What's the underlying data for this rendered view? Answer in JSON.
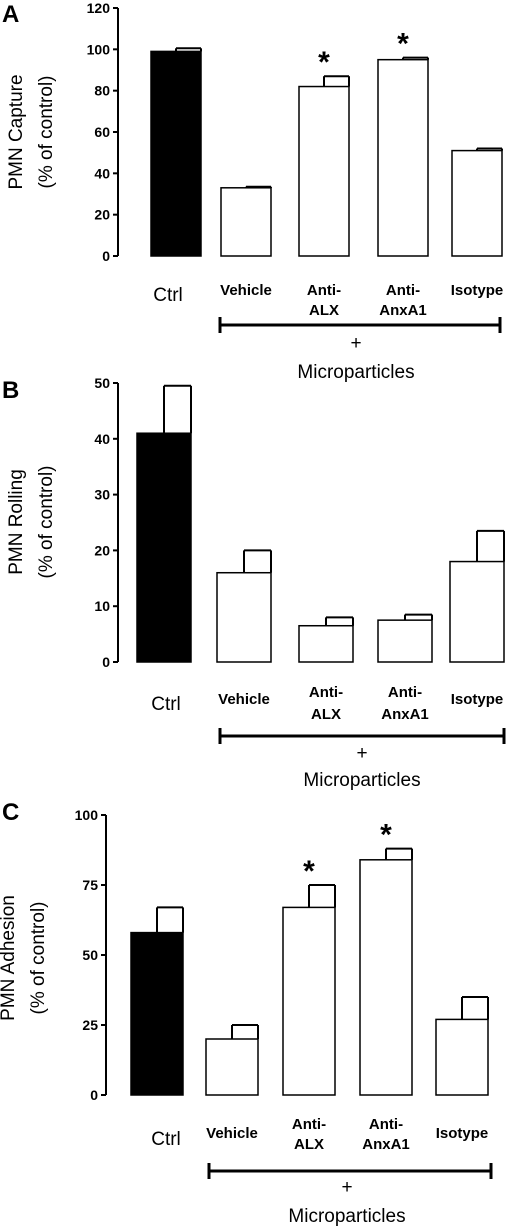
{
  "chart_data": [
    {
      "type": "bar",
      "panel": "A",
      "ylabel_line1": "PMN Capture",
      "ylabel_line2": "(% of control)",
      "ylim": [
        0,
        120
      ],
      "yticks": [
        0,
        20,
        40,
        60,
        80,
        100,
        120
      ],
      "categories": [
        "Ctrl",
        "Vehicle",
        "Anti-ALX",
        "Anti-AnxA1",
        "Isotype"
      ],
      "category_lines": [
        [
          "Ctrl"
        ],
        [
          "Vehicle"
        ],
        [
          "Anti-",
          "ALX"
        ],
        [
          "Anti-",
          "AnxA1"
        ],
        [
          "Isotype"
        ]
      ],
      "values": [
        99,
        33,
        82,
        95,
        51
      ],
      "errors": [
        1.5,
        0.5,
        5,
        1,
        1
      ],
      "fills": [
        "#000000",
        "#ffffff",
        "#ffffff",
        "#ffffff",
        "#ffffff"
      ],
      "significance": [
        "",
        "",
        "*",
        "*",
        ""
      ],
      "group_symbol": "+",
      "group_label": "Microparticles"
    },
    {
      "type": "bar",
      "panel": "B",
      "ylabel_line1": "PMN Rolling",
      "ylabel_line2": "(% of control)",
      "ylim": [
        0,
        50
      ],
      "yticks": [
        0,
        10,
        20,
        30,
        40,
        50
      ],
      "categories": [
        "Ctrl",
        "Vehicle",
        "Anti-ALX",
        "Anti-AnxA1",
        "Isotype"
      ],
      "category_lines": [
        [
          "Ctrl"
        ],
        [
          "Vehicle"
        ],
        [
          "Anti-",
          "ALX"
        ],
        [
          "Anti-",
          "AnxA1"
        ],
        [
          "Isotype"
        ]
      ],
      "values": [
        41,
        16,
        6.5,
        7.5,
        18
      ],
      "errors": [
        8.5,
        4,
        1.5,
        1,
        5.5
      ],
      "fills": [
        "#000000",
        "#ffffff",
        "#ffffff",
        "#ffffff",
        "#ffffff"
      ],
      "significance": [
        "",
        "",
        "",
        "",
        ""
      ],
      "group_symbol": "+",
      "group_label": "Microparticles"
    },
    {
      "type": "bar",
      "panel": "C",
      "ylabel_line1": "PMN Adhesion",
      "ylabel_line2": "(% of control)",
      "ylim": [
        0,
        100
      ],
      "yticks": [
        0,
        25,
        50,
        75,
        100
      ],
      "categories": [
        "Ctrl",
        "Vehicle",
        "Anti-ALX",
        "Anti-AnxA1",
        "Isotype"
      ],
      "category_lines": [
        [
          "Ctrl"
        ],
        [
          "Vehicle"
        ],
        [
          "Anti-",
          "ALX"
        ],
        [
          "Anti-",
          "AnxA1"
        ],
        [
          "Isotype"
        ]
      ],
      "values": [
        58,
        20,
        67,
        84,
        27
      ],
      "errors": [
        9,
        5,
        8,
        4,
        8
      ],
      "fills": [
        "#000000",
        "#ffffff",
        "#ffffff",
        "#ffffff",
        "#ffffff"
      ],
      "significance": [
        "",
        "",
        "*",
        "*",
        ""
      ],
      "group_symbol": "+",
      "group_label": "Microparticles"
    }
  ]
}
